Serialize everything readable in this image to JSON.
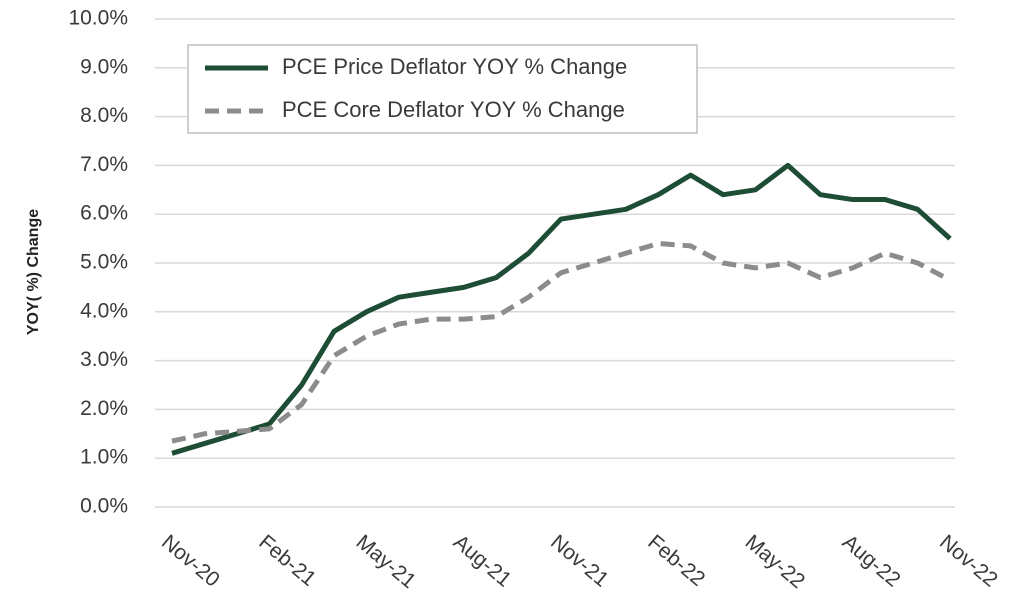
{
  "chart_data": {
    "type": "line",
    "y_label": "YOY( %) Change",
    "categories": [
      "Nov-20",
      null,
      null,
      "Feb-21",
      null,
      null,
      "May-21",
      null,
      null,
      "Aug-21",
      null,
      null,
      "Nov-21",
      null,
      null,
      "Feb-22",
      null,
      null,
      "May-22",
      null,
      null,
      "Aug-22",
      null,
      null,
      "Nov-22"
    ],
    "series": [
      {
        "name": "PCE Price Deflator YOY % Change",
        "color": "#1e4d36",
        "dash": false,
        "values": [
          1.1,
          1.3,
          1.5,
          1.7,
          2.5,
          3.6,
          4.0,
          4.3,
          4.4,
          4.5,
          4.7,
          5.2,
          5.9,
          6.0,
          6.1,
          6.4,
          6.8,
          6.4,
          6.5,
          7.0,
          6.4,
          6.3,
          6.3,
          6.1,
          5.5
        ]
      },
      {
        "name": "PCE Core Deflator YOY % Change",
        "color": "#8c8c8c",
        "dash": true,
        "values": [
          1.35,
          1.5,
          1.55,
          1.6,
          2.1,
          3.1,
          3.5,
          3.75,
          3.85,
          3.85,
          3.9,
          4.3,
          4.8,
          5.0,
          5.2,
          5.4,
          5.35,
          5.0,
          4.9,
          5.0,
          4.7,
          4.9,
          5.2,
          5.0,
          4.65
        ]
      }
    ],
    "ylim": [
      0,
      10
    ],
    "yticks": [
      {
        "value": 0,
        "label": "0.0%"
      },
      {
        "value": 1,
        "label": "1.0%"
      },
      {
        "value": 2,
        "label": "2.0%"
      },
      {
        "value": 3,
        "label": "3.0%"
      },
      {
        "value": 4,
        "label": "4.0%"
      },
      {
        "value": 5,
        "label": "5.0%"
      },
      {
        "value": 6,
        "label": "6.0%"
      },
      {
        "value": 7,
        "label": "7.0%"
      },
      {
        "value": 8,
        "label": "8.0%"
      },
      {
        "value": 9,
        "label": "9.0%"
      },
      {
        "value": 10,
        "label": "10.0%"
      }
    ],
    "grid": true,
    "legend": "upper left"
  }
}
